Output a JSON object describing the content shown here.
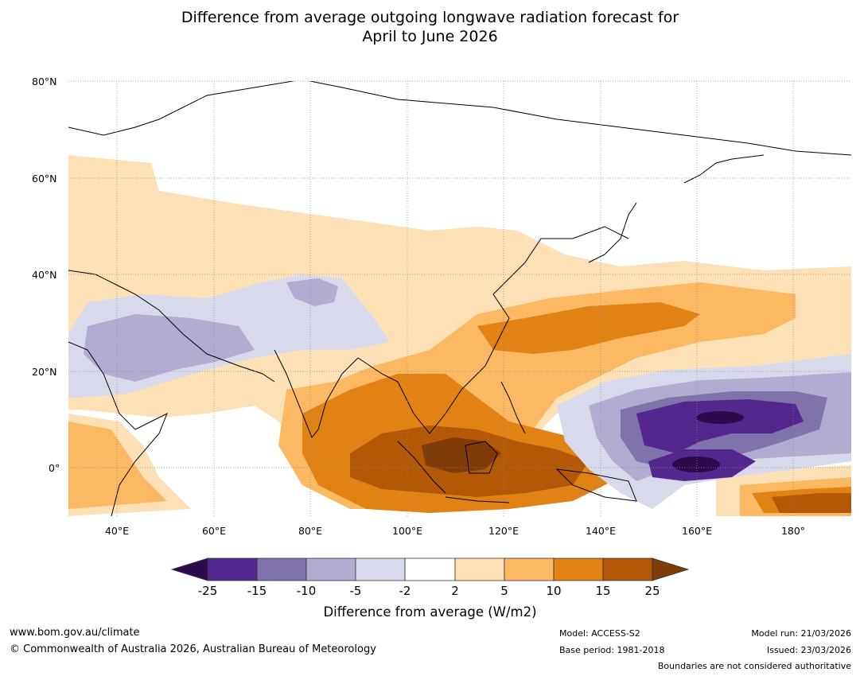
{
  "title_line1": "Difference from average outgoing longwave radiation forecast for",
  "title_line2": "April to June 2026",
  "map": {
    "lat_labels": [
      "80°N",
      "60°N",
      "40°N",
      "20°N",
      "0°"
    ],
    "lon_labels": [
      "40°E",
      "60°E",
      "80°E",
      "100°E",
      "120°E",
      "140°E",
      "160°E",
      "180°"
    ],
    "extent": {
      "lon_min": 30,
      "lon_max": 192,
      "lat_min": -10,
      "lat_max": 80
    }
  },
  "colorbar": {
    "ticks": [
      "-25",
      "-15",
      "-10",
      "-5",
      "-2",
      "2",
      "5",
      "10",
      "15",
      "25"
    ],
    "label": "Difference from average (W/m2)",
    "colors": {
      "below_min": "#2d0a4e",
      "bins": [
        "#54278f",
        "#8073ac",
        "#b2abd2",
        "#d8daeb",
        "#ffffff",
        "#fee0b6",
        "#fdb863",
        "#e08214",
        "#b35806"
      ],
      "above_max": "#7f3b08"
    }
  },
  "footer": {
    "url": "www.bom.gov.au/climate",
    "copyright": "© Commonwealth of Australia 2026, Australian Bureau of Meteorology",
    "model": "Model: ACCESS-S2",
    "base_period": "Base period: 1981-2018",
    "model_run": "Model run: 21/03/2026",
    "issued": "Issued: 23/03/2026",
    "disclaimer": "Boundaries are not considered authoritative"
  }
}
